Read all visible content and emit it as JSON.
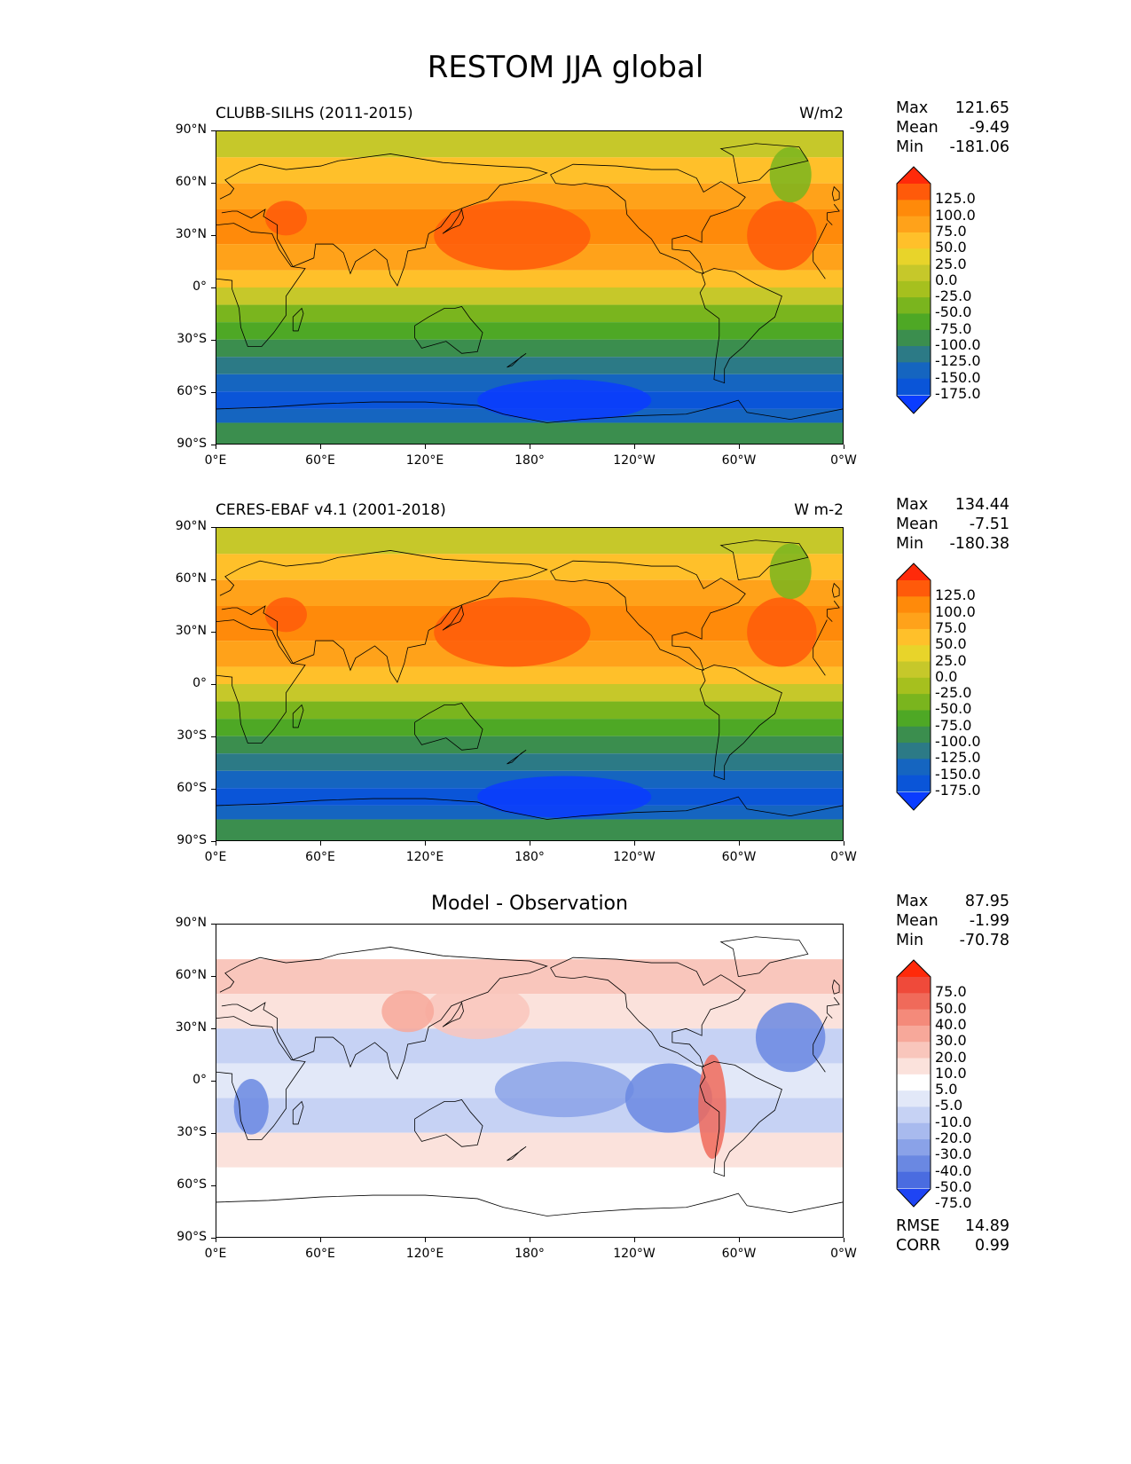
{
  "title": "RESTOM JJA global",
  "x_ticks": [
    "0°E",
    "60°E",
    "120°E",
    "180°",
    "120°W",
    "60°W",
    "0°W"
  ],
  "y_ticks": [
    "90°N",
    "60°N",
    "30°N",
    "0°",
    "30°S",
    "60°S",
    "90°S"
  ],
  "panels": [
    {
      "id": "model",
      "title_left": "CLUBB-SILHS (2011-2015)",
      "title_right": "W/m2",
      "title_center": "",
      "stats": {
        "max_label": "Max",
        "max": "121.65",
        "mean_label": "Mean",
        "mean": "-9.49",
        "min_label": "Min",
        "min": "-181.06"
      },
      "colorbar": {
        "levels": [
          "125.0",
          "100.0",
          "75.0",
          "50.0",
          "25.0",
          "0.0",
          "-25.0",
          "-50.0",
          "-75.0",
          "-100.0",
          "-125.0",
          "-150.0",
          "-175.0"
        ],
        "colors": [
          "#ff2a0a",
          "#ff5a0a",
          "#ff8a0a",
          "#ffa21a",
          "#ffc02a",
          "#e8d42a",
          "#c6c82a",
          "#a6c01e",
          "#7ab51e",
          "#4ea825",
          "#3b8e4e",
          "#2c7a86",
          "#1565c0",
          "#0a55d8",
          "#0a3cff"
        ]
      }
    },
    {
      "id": "obs",
      "title_left": "CERES-EBAF v4.1 (2001-2018)",
      "title_right": "W m-2",
      "title_center": "",
      "stats": {
        "max_label": "Max",
        "max": "134.44",
        "mean_label": "Mean",
        "mean": "-7.51",
        "min_label": "Min",
        "min": "-180.38"
      },
      "colorbar": {
        "levels": [
          "125.0",
          "100.0",
          "75.0",
          "50.0",
          "25.0",
          "0.0",
          "-25.0",
          "-50.0",
          "-75.0",
          "-100.0",
          "-125.0",
          "-150.0",
          "-175.0"
        ],
        "colors": [
          "#ff2a0a",
          "#ff5a0a",
          "#ff8a0a",
          "#ffa21a",
          "#ffc02a",
          "#e8d42a",
          "#c6c82a",
          "#a6c01e",
          "#7ab51e",
          "#4ea825",
          "#3b8e4e",
          "#2c7a86",
          "#1565c0",
          "#0a55d8",
          "#0a3cff"
        ]
      }
    },
    {
      "id": "diff",
      "title_left": "",
      "title_right": "",
      "title_center": "Model - Observation",
      "stats": {
        "max_label": "Max",
        "max": "87.95",
        "mean_label": "Mean",
        "mean": "-1.99",
        "min_label": "Min",
        "min": "-70.78"
      },
      "colorbar": {
        "levels": [
          "75.0",
          "50.0",
          "40.0",
          "30.0",
          "20.0",
          "10.0",
          "5.0",
          "-5.0",
          "-10.0",
          "-20.0",
          "-30.0",
          "-40.0",
          "-50.0",
          "-75.0"
        ],
        "colors": [
          "#ff2a0a",
          "#ef4a3a",
          "#f06a5a",
          "#f48a7a",
          "#f7a89a",
          "#f9c6bc",
          "#fbe2dc",
          "#ffffff",
          "#e2e8f8",
          "#c6d2f4",
          "#a8baee",
          "#8aa2e8",
          "#6a88e2",
          "#4a6ce0",
          "#1e44f4"
        ]
      },
      "footer": {
        "rmse_label": "RMSE",
        "rmse": "14.89",
        "corr_label": "CORR",
        "corr": "0.99"
      }
    }
  ]
}
